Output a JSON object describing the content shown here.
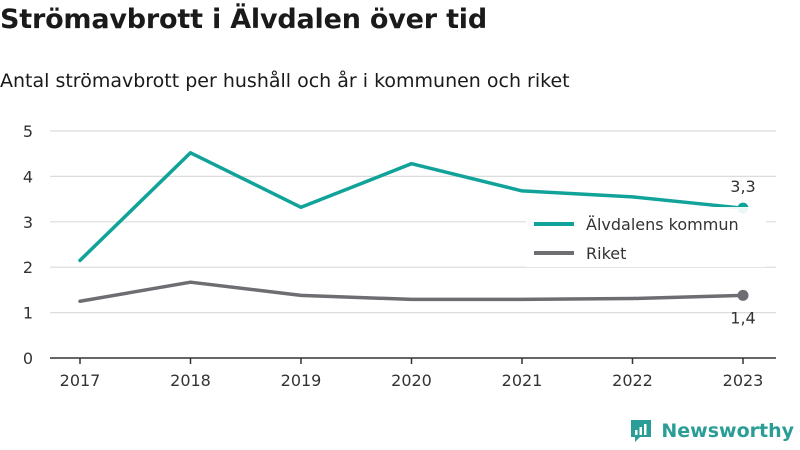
{
  "header": {
    "title": "Strömavbrott i Älvdalen över tid",
    "subtitle": "Antal strömavbrott per hushåll och år i kommunen och riket"
  },
  "brand": {
    "name": "Newsworthy",
    "logo_icon": "bar-chart-bubble-icon",
    "color": "#2a9d96"
  },
  "chart_data": {
    "type": "line",
    "x": [
      "2017",
      "2018",
      "2019",
      "2020",
      "2021",
      "2022",
      "2023"
    ],
    "ylim": [
      0,
      5
    ],
    "yticks": [
      "0",
      "1",
      "2",
      "3",
      "4",
      "5"
    ],
    "grid": true,
    "legend_position": "right",
    "series": [
      {
        "name": "Älvdalens kommun",
        "color": "#11a39a",
        "values": [
          2.15,
          4.52,
          3.32,
          4.28,
          3.68,
          3.55,
          3.3
        ],
        "end_label": "3,3"
      },
      {
        "name": "Riket",
        "color": "#6e6d72",
        "values": [
          1.25,
          1.67,
          1.38,
          1.29,
          1.29,
          1.31,
          1.38
        ],
        "end_label": "1,4"
      }
    ]
  }
}
